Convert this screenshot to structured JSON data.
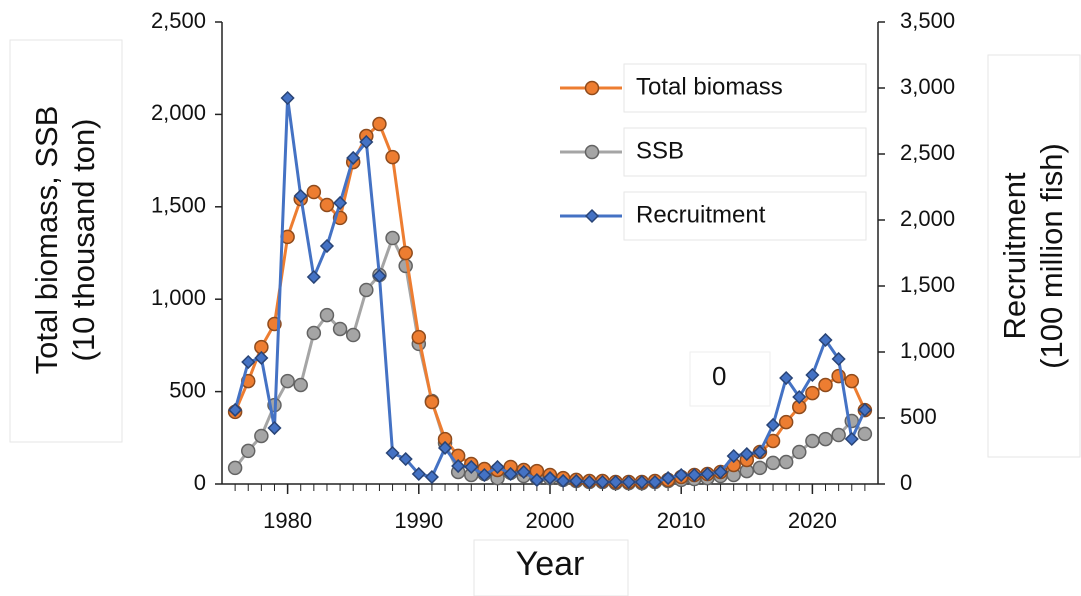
{
  "chart_data": {
    "type": "line",
    "xlabel": "Year",
    "ylabel": [
      "Total biomass, SSB",
      "(10 thousand ton)"
    ],
    "y2label": [
      "Recruitment",
      "(100 million fish)"
    ],
    "annotation": "0",
    "x": [
      1976,
      1977,
      1978,
      1979,
      1980,
      1981,
      1982,
      1983,
      1984,
      1985,
      1986,
      1987,
      1988,
      1989,
      1990,
      1991,
      1992,
      1993,
      1994,
      1995,
      1996,
      1997,
      1998,
      1999,
      2000,
      2001,
      2002,
      2003,
      2004,
      2005,
      2006,
      2007,
      2008,
      2009,
      2010,
      2011,
      2012,
      2013,
      2014,
      2015,
      2016,
      2017,
      2018,
      2019,
      2020,
      2021,
      2022,
      2023,
      2024
    ],
    "xlim": [
      1975,
      2025
    ],
    "xticks": [
      1980,
      1990,
      2000,
      2010,
      2020
    ],
    "ylim": [
      0,
      2500
    ],
    "yticks": [
      0,
      500,
      {
        "value": 1000,
        "label": "1,000"
      },
      {
        "value": 1500,
        "label": "1,500"
      },
      {
        "value": 2000,
        "label": "2,000"
      },
      {
        "value": 2500,
        "label": "2,500"
      }
    ],
    "y2lim": [
      0,
      3500
    ],
    "y2ticks": [
      0,
      500,
      {
        "value": 1000,
        "label": "1,000"
      },
      {
        "value": 1500,
        "label": "1,500"
      },
      {
        "value": 2000,
        "label": "2,000"
      },
      {
        "value": 2500,
        "label": "2,500"
      },
      {
        "value": 3000,
        "label": "3,000"
      },
      {
        "value": 3500,
        "label": "3,500"
      }
    ],
    "series": [
      {
        "name": "SSB",
        "color": "#a5a5a5",
        "marker": "circle",
        "values": [
          87,
          179,
          260,
          427,
          557,
          536,
          817,
          914,
          839,
          806,
          1050,
          1131,
          1331,
          1180,
          758,
          449,
          222,
          65,
          49,
          54,
          32,
          60,
          43,
          32,
          32,
          22,
          16,
          11,
          11,
          5,
          5,
          5,
          11,
          16,
          22,
          27,
          32,
          43,
          49,
          70,
          87,
          114,
          119,
          173,
          233,
          243,
          265,
          341,
          271
        ]
      },
      {
        "name": "Total biomass",
        "color": "#ed7d31",
        "marker": "circle",
        "values": [
          390,
          557,
          741,
          866,
          1337,
          1542,
          1580,
          1510,
          1440,
          1742,
          1883,
          1948,
          1769,
          1250,
          795,
          444,
          243,
          152,
          108,
          81,
          76,
          92,
          76,
          70,
          49,
          32,
          22,
          16,
          16,
          11,
          11,
          11,
          16,
          22,
          38,
          49,
          54,
          65,
          103,
          130,
          173,
          233,
          335,
          417,
          492,
          536,
          584,
          557,
          400
        ]
      },
      {
        "name": "Recruitment",
        "color": "#4472c4",
        "marker": "diamond",
        "axis": "y2",
        "values": [
          561,
          924,
          955,
          424,
          2924,
          2182,
          1568,
          1803,
          2129,
          2470,
          2591,
          1576,
          235,
          189,
          76,
          53,
          273,
          136,
          129,
          68,
          129,
          76,
          91,
          30,
          45,
          23,
          23,
          15,
          15,
          15,
          15,
          15,
          15,
          45,
          68,
          68,
          76,
          91,
          212,
          227,
          242,
          447,
          803,
          659,
          826,
          1091,
          947,
          341,
          561
        ]
      }
    ]
  }
}
